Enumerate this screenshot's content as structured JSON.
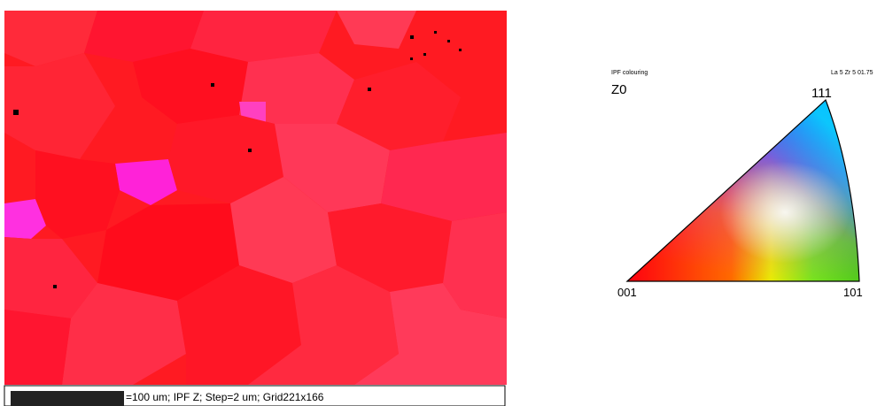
{
  "map": {
    "caption": "=100 um; IPF Z; Step=2 um; Grid221x166"
  },
  "legend": {
    "title": "IPF colouring",
    "phase": "La 5 Zr 5 01.75",
    "axis": "Z0",
    "corners": {
      "top": "111",
      "left": "001",
      "right": "101"
    }
  }
}
